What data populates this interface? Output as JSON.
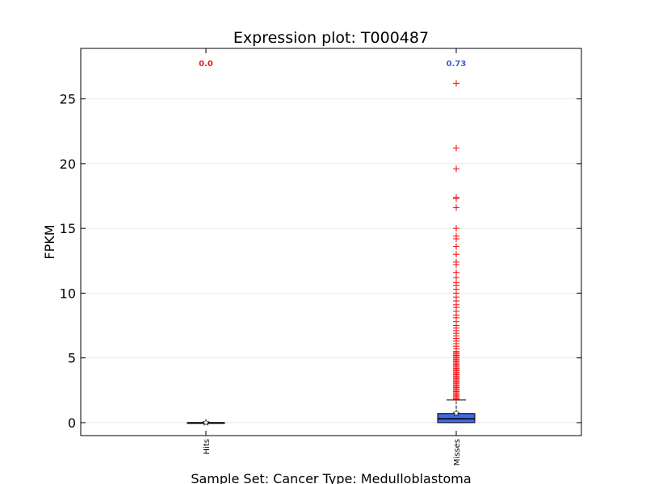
{
  "chart_data": {
    "type": "box",
    "title": "Expression plot: T000487",
    "xlabel": "Sample Set: Cancer Type: Medulloblastoma",
    "ylabel": "FPKM",
    "ylim": [
      -1,
      28.9
    ],
    "yticks": [
      0,
      5,
      10,
      15,
      20,
      25
    ],
    "ytick_labels": [
      "0",
      "5",
      "10",
      "15",
      "20",
      "25"
    ],
    "grid": "horizontal",
    "categories": [
      "Hits",
      "Misses"
    ],
    "boxes": [
      {
        "name": "Hits",
        "q1": 0.0,
        "median": 0.0,
        "q3": 0.0,
        "whisker_low": 0.0,
        "whisker_high": 0.0,
        "mean": 0.0,
        "annotation": "0.0",
        "annotation_color": "#e31a1c",
        "box_color": "#8b1a1a",
        "outliers": []
      },
      {
        "name": "Misses",
        "q1": 0.0,
        "median": 0.3,
        "q3": 0.7,
        "whisker_low": 0.0,
        "whisker_high": 1.75,
        "mean": 0.73,
        "annotation": "0.73",
        "annotation_color": "#3c5fcf",
        "box_color": "#4169e1",
        "outliers": [
          1.8,
          1.9,
          2.0,
          2.1,
          2.2,
          2.3,
          2.4,
          2.5,
          2.6,
          2.7,
          2.8,
          2.9,
          3.0,
          3.1,
          3.2,
          3.3,
          3.4,
          3.5,
          3.6,
          3.7,
          3.8,
          3.9,
          4.0,
          4.1,
          4.2,
          4.3,
          4.4,
          4.5,
          4.6,
          4.7,
          4.8,
          4.9,
          5.0,
          5.1,
          5.2,
          5.3,
          5.4,
          5.5,
          5.7,
          5.9,
          6.1,
          6.3,
          6.5,
          6.7,
          6.9,
          7.1,
          7.3,
          7.5,
          7.8,
          8.1,
          8.3,
          8.6,
          8.9,
          9.1,
          9.4,
          9.7,
          10.0,
          10.3,
          10.6,
          10.8,
          11.2,
          11.6,
          12.2,
          12.4,
          13.0,
          13.6,
          14.2,
          14.4,
          15.0,
          16.6,
          17.3,
          17.4,
          19.6,
          21.2,
          26.2
        ]
      }
    ],
    "outlier_color": "#ff0000"
  }
}
